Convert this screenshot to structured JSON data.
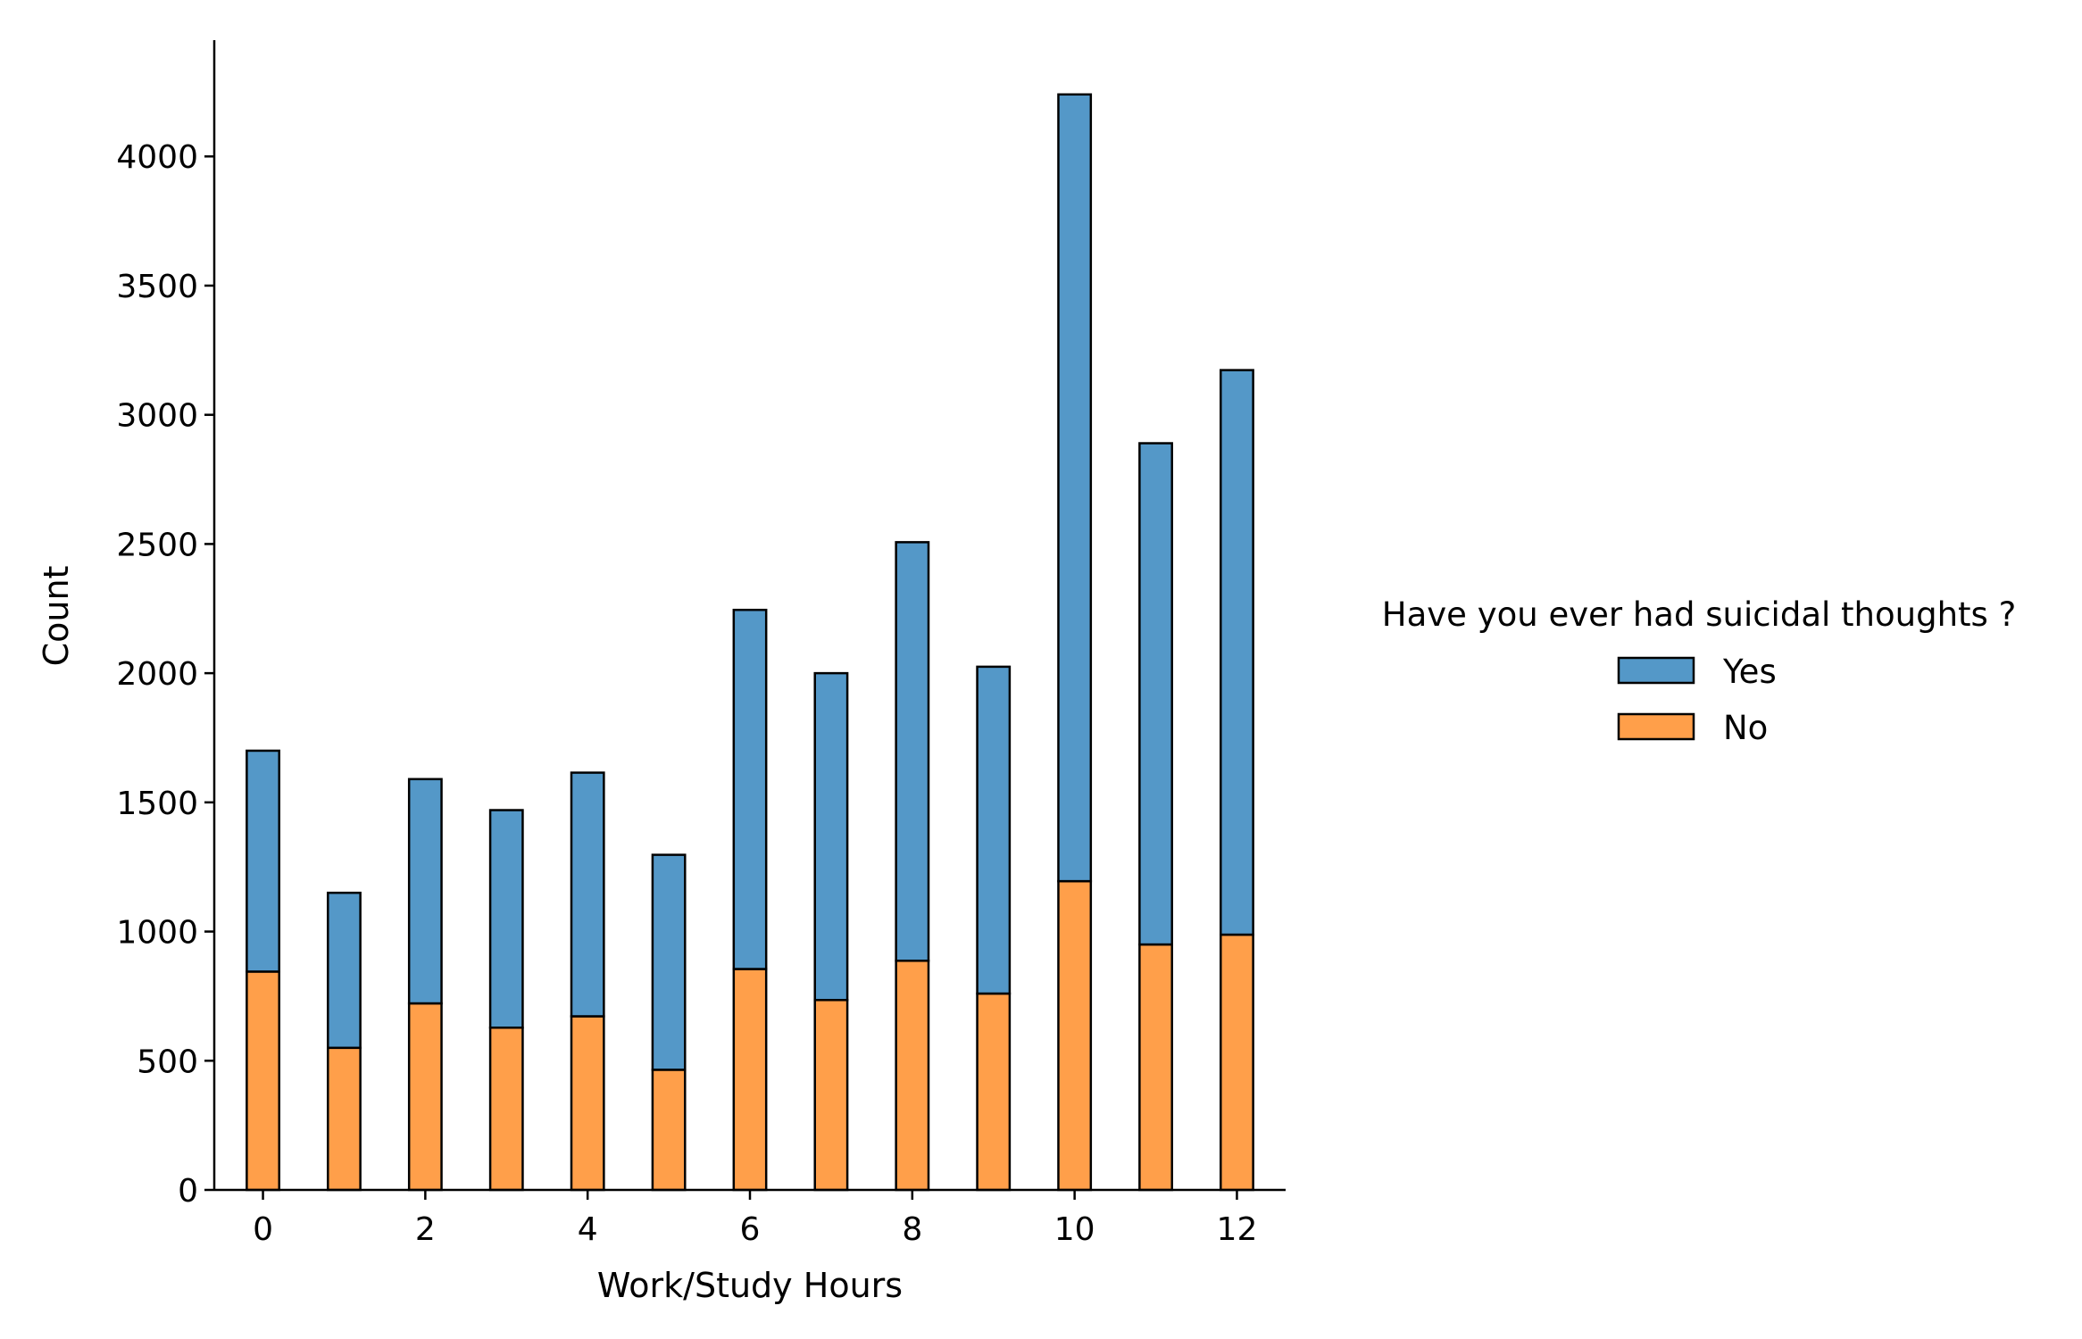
{
  "chart_data": {
    "type": "bar",
    "stacked": true,
    "xlabel": "Work/Study Hours",
    "ylabel": "Count",
    "xlim": [
      -0.6,
      12.6
    ],
    "ylim": [
      0,
      4450
    ],
    "x_ticks": [
      0,
      2,
      4,
      6,
      8,
      10,
      12
    ],
    "y_ticks": [
      0,
      500,
      1000,
      1500,
      2000,
      2500,
      3000,
      3500,
      4000
    ],
    "bar_width_hours": 0.4,
    "x": [
      0,
      1,
      2,
      3,
      4,
      5,
      6,
      7,
      8,
      9,
      10,
      11,
      12
    ],
    "series": [
      {
        "name": "No",
        "color": "#ff9f4a",
        "values": [
          845,
          550,
          722,
          628,
          672,
          465,
          855,
          735,
          887,
          760,
          1195,
          950,
          988
        ]
      },
      {
        "name": "Yes",
        "color": "#5498c8",
        "values": [
          855,
          600,
          868,
          842,
          943,
          832,
          1390,
          1265,
          1620,
          1265,
          3045,
          1940,
          2185
        ]
      }
    ],
    "totals": [
      1700,
      1150,
      1590,
      1470,
      1615,
      1297,
      2245,
      2000,
      2507,
      2025,
      4240,
      2890,
      3173
    ],
    "legend": {
      "title": "Have you ever had suicidal thoughts ?",
      "placement": "right",
      "entries": [
        "Yes",
        "No"
      ]
    },
    "grid": false,
    "edge_color": "#000000"
  }
}
